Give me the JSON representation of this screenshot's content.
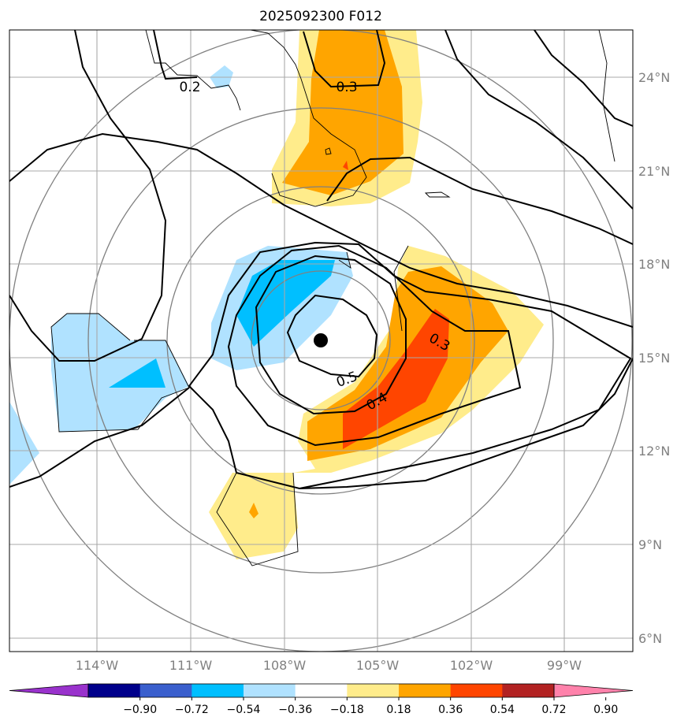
{
  "title": "2025092300 F012",
  "map": {
    "lon_labels": [
      "114°W",
      "111°W",
      "108°W",
      "105°W",
      "102°W",
      "99°W"
    ],
    "lat_labels": [
      "24°N",
      "21°N",
      "18°N",
      "15°N",
      "12°N",
      "9°N",
      "6°N"
    ],
    "contour_labels": [
      "0.2",
      "0.3",
      "0.3",
      "0.4",
      "0.5"
    ],
    "storm_center": "storm-center-marker"
  },
  "colorbar": {
    "ticks": [
      "−0.90",
      "−0.72",
      "−0.54",
      "−0.36",
      "−0.18",
      "0.18",
      "0.36",
      "0.54",
      "0.72",
      "0.90"
    ],
    "colors": [
      "#9932cc",
      "#00008b",
      "#3a5fcd",
      "#00bfff",
      "#b0e2ff",
      "#ffffff",
      "#ffec8b",
      "#ffa500",
      "#ff4500",
      "#b22222",
      "#ff82ab"
    ]
  }
}
